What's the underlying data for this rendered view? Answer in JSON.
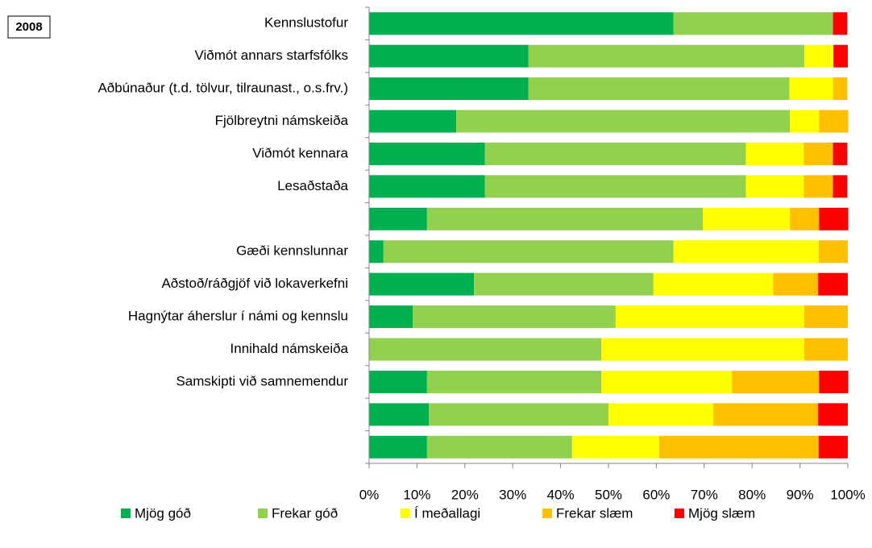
{
  "chart_data": {
    "type": "stacked_barh",
    "title": "2008",
    "categories": [
      "Kennslustofur",
      "Viðmót annars starfsfólks",
      "Aðbúnaður (t.d. tölvur, tilraunast., o.s.frv.)",
      "Fjölbreytni námskeiða",
      "Viðmót kennara",
      "Lesaðstaða",
      null,
      "Gæði kennslunnar",
      "Aðstoð/ráðgjöf við lokaverkefni",
      "Hagnýtar áherslur í námi og kennslu",
      "Innihald námskeiða",
      "Samskipti við samnemendur",
      null,
      null
    ],
    "series": [
      {
        "name": "Mjög góð",
        "color": "#00b050",
        "values": [
          63.6,
          33.3,
          33.3,
          18.2,
          24.2,
          24.2,
          12.1,
          3.0,
          21.9,
          9.1,
          0,
          12.1,
          12.5,
          12.1
        ]
      },
      {
        "name": "Frekar góð",
        "color": "#92d050",
        "values": [
          33.3,
          57.6,
          54.5,
          69.7,
          54.5,
          54.5,
          57.6,
          60.6,
          37.5,
          42.4,
          48.5,
          36.4,
          37.5,
          30.3
        ]
      },
      {
        "name": "Í meðallagi",
        "color": "#ffff00",
        "values": [
          0,
          6.1,
          9.1,
          6.1,
          12.1,
          12.1,
          18.2,
          30.3,
          25.0,
          39.4,
          42.4,
          27.3,
          21.9,
          18.2
        ]
      },
      {
        "name": "Frekar slæm",
        "color": "#ffc000",
        "values": [
          0,
          0,
          3.0,
          6.1,
          6.1,
          6.1,
          6.1,
          6.1,
          9.4,
          9.1,
          9.1,
          18.2,
          21.9,
          33.3
        ]
      },
      {
        "name": "Mjög slæm",
        "color": "#ff0000",
        "values": [
          3.0,
          3.0,
          0,
          0,
          3.0,
          3.0,
          6.1,
          0,
          6.2,
          0,
          0,
          6.1,
          6.2,
          6.1
        ]
      }
    ],
    "xlim": [
      0,
      100
    ],
    "xticks": [
      {
        "value": 0,
        "label": "0%"
      },
      {
        "value": 10,
        "label": "10%"
      },
      {
        "value": 20,
        "label": "20%"
      },
      {
        "value": 30,
        "label": "30%"
      },
      {
        "value": 40,
        "label": "40%"
      },
      {
        "value": 50,
        "label": "50%"
      },
      {
        "value": 60,
        "label": "60%"
      },
      {
        "value": 70,
        "label": "70%"
      },
      {
        "value": 80,
        "label": "80%"
      },
      {
        "value": 90,
        "label": "90%"
      },
      {
        "value": 100,
        "label": "100%"
      }
    ],
    "legend": "bottom"
  }
}
